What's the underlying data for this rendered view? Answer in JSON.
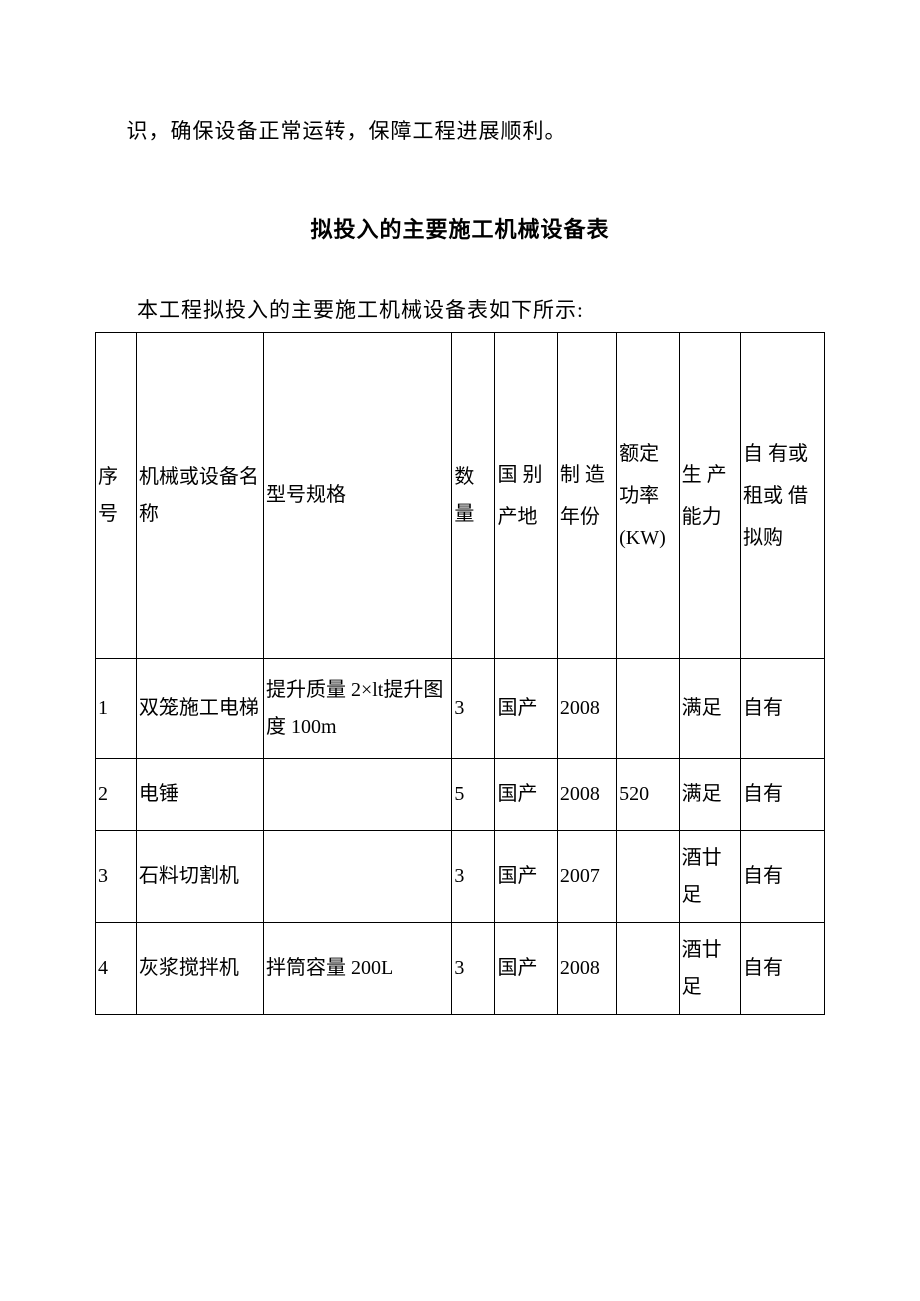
{
  "document": {
    "intro_line": "识，确保设备正常运转，保障工程进展顺利。",
    "title": "拟投入的主要施工机械设备表",
    "subtitle": "本工程拟投入的主要施工机械设备表如下所示:",
    "background_color": "#ffffff",
    "text_color": "#000000",
    "border_color": "#000000"
  },
  "table": {
    "columns": [
      {
        "key": "seq",
        "label": "序号",
        "width": 38
      },
      {
        "key": "name",
        "label": "机械或设备名称",
        "width": 118
      },
      {
        "key": "model",
        "label": "型号规格",
        "width": 175
      },
      {
        "key": "qty",
        "label": "数量",
        "width": 40
      },
      {
        "key": "origin",
        "label": "国 别产地",
        "width": 58
      },
      {
        "key": "year",
        "label": "制 造年份",
        "width": 55
      },
      {
        "key": "power",
        "label": "额定功率(KW)",
        "width": 58
      },
      {
        "key": "capacity",
        "label": "生 产能力",
        "width": 57
      },
      {
        "key": "ownership",
        "label": "自 有或 租或 借拟购",
        "width": 78
      }
    ],
    "rows": [
      {
        "seq": "1",
        "name": "双笼施工电梯",
        "model": "提升质量 2×lt提升图度 100m",
        "qty": "3",
        "origin": "国产",
        "year": "2008",
        "power": "",
        "capacity": "满足",
        "ownership": "自有"
      },
      {
        "seq": "2",
        "name": "电锤",
        "model": "",
        "qty": "5",
        "origin": "国产",
        "year": "2008",
        "power": "520",
        "capacity": "满足",
        "ownership": "自有"
      },
      {
        "seq": "3",
        "name": "石料切割机",
        "model": "",
        "qty": "3",
        "origin": "国产",
        "year": "2007",
        "power": "",
        "capacity": "酒廿足",
        "ownership": "自有"
      },
      {
        "seq": "4",
        "name": "灰浆搅拌机",
        "model": "拌筒容量 200L",
        "qty": "3",
        "origin": "国产",
        "year": "2008",
        "power": "",
        "capacity": "酒廿足",
        "ownership": "自有"
      }
    ]
  }
}
